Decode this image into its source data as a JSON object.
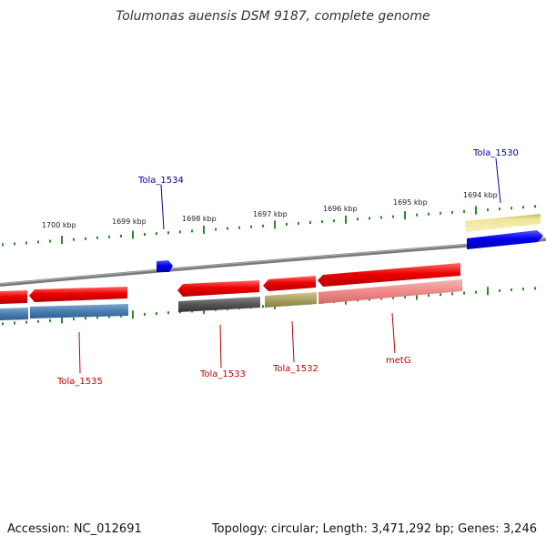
{
  "title": "Tolumonas auensis DSM 9187, complete genome",
  "footer": {
    "accession": "Accession: NC_012691",
    "summary": "Topology: circular; Length: 3,471,292 bp; Genes: 3,246"
  },
  "ticks": [
    "1700 kbp",
    "1699 kbp",
    "1698 kbp",
    "1697 kbp",
    "1696 kbp",
    "1695 kbp",
    "1694 kbp"
  ],
  "genes": {
    "tola_1534": "Tola_1534",
    "tola_1530": "Tola_1530",
    "tola_1535": "Tola_1535",
    "tola_1533": "Tola_1533",
    "tola_1532": "Tola_1532",
    "metg": "metG"
  },
  "colors": {
    "cds_red": "#ee0000",
    "cds_blue": "#0000ee",
    "gene_blue": "#4a7fb0",
    "gene_gray": "#555555",
    "gene_olive": "#a9a262",
    "gene_pink": "#ef8a8a",
    "gene_yellow": "#efe598",
    "backbone": "#808080",
    "ruler": "#2a8a2a"
  }
}
